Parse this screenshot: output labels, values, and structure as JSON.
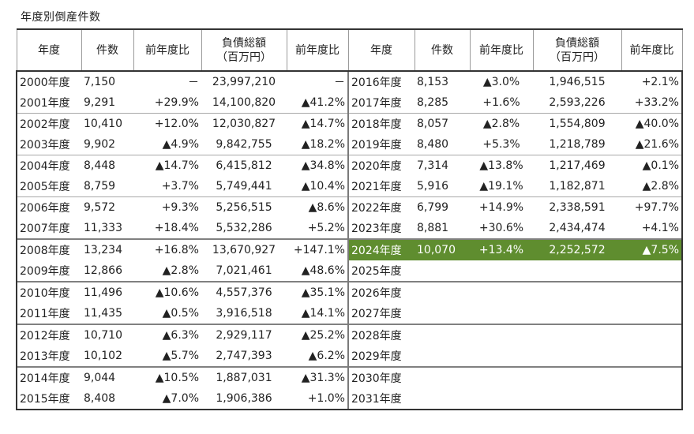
{
  "title": "年度別倒産件数",
  "highlight_color": "#5f8d2f",
  "headers": {
    "year": "年度",
    "count": "件数",
    "yoy": "前年度比",
    "debt": "負債総額",
    "debt_unit": "（百万円）"
  },
  "left": [
    {
      "year": "2000年度",
      "count": "7,150",
      "count_yoy": "－",
      "debt": "23,997,210",
      "debt_yoy": "－"
    },
    {
      "year": "2001年度",
      "count": "9,291",
      "count_yoy": "+29.9%",
      "debt": "14,100,820",
      "debt_yoy": "▲41.2%"
    },
    {
      "year": "2002年度",
      "count": "10,410",
      "count_yoy": "+12.0%",
      "debt": "12,030,827",
      "debt_yoy": "▲14.7%"
    },
    {
      "year": "2003年度",
      "count": "9,902",
      "count_yoy": "▲4.9%",
      "debt": "9,842,755",
      "debt_yoy": "▲18.2%"
    },
    {
      "year": "2004年度",
      "count": "8,448",
      "count_yoy": "▲14.7%",
      "debt": "6,415,812",
      "debt_yoy": "▲34.8%"
    },
    {
      "year": "2005年度",
      "count": "8,759",
      "count_yoy": "+3.7%",
      "debt": "5,749,441",
      "debt_yoy": "▲10.4%"
    },
    {
      "year": "2006年度",
      "count": "9,572",
      "count_yoy": "+9.3%",
      "debt": "5,256,515",
      "debt_yoy": "▲8.6%"
    },
    {
      "year": "2007年度",
      "count": "11,333",
      "count_yoy": "+18.4%",
      "debt": "5,532,286",
      "debt_yoy": "+5.2%"
    },
    {
      "year": "2008年度",
      "count": "13,234",
      "count_yoy": "+16.8%",
      "debt": "13,670,927",
      "debt_yoy": "+147.1%"
    },
    {
      "year": "2009年度",
      "count": "12,866",
      "count_yoy": "▲2.8%",
      "debt": "7,021,461",
      "debt_yoy": "▲48.6%"
    },
    {
      "year": "2010年度",
      "count": "11,496",
      "count_yoy": "▲10.6%",
      "debt": "4,557,376",
      "debt_yoy": "▲35.1%"
    },
    {
      "year": "2011年度",
      "count": "11,435",
      "count_yoy": "▲0.5%",
      "debt": "3,916,518",
      "debt_yoy": "▲14.1%"
    },
    {
      "year": "2012年度",
      "count": "10,710",
      "count_yoy": "▲6.3%",
      "debt": "2,929,117",
      "debt_yoy": "▲25.2%"
    },
    {
      "year": "2013年度",
      "count": "10,102",
      "count_yoy": "▲5.7%",
      "debt": "2,747,393",
      "debt_yoy": "▲6.2%"
    },
    {
      "year": "2014年度",
      "count": "9,044",
      "count_yoy": "▲10.5%",
      "debt": "1,887,031",
      "debt_yoy": "▲31.3%"
    },
    {
      "year": "2015年度",
      "count": "8,408",
      "count_yoy": "▲7.0%",
      "debt": "1,906,386",
      "debt_yoy": "+1.0%"
    }
  ],
  "right": [
    {
      "year": "2016年度",
      "count": "8,153",
      "count_yoy": "▲3.0%",
      "debt": "1,946,515",
      "debt_yoy": "+2.1%"
    },
    {
      "year": "2017年度",
      "count": "8,285",
      "count_yoy": "+1.6%",
      "debt": "2,593,226",
      "debt_yoy": "+33.2%"
    },
    {
      "year": "2018年度",
      "count": "8,057",
      "count_yoy": "▲2.8%",
      "debt": "1,554,809",
      "debt_yoy": "▲40.0%"
    },
    {
      "year": "2019年度",
      "count": "8,480",
      "count_yoy": "+5.3%",
      "debt": "1,218,789",
      "debt_yoy": "▲21.6%"
    },
    {
      "year": "2020年度",
      "count": "7,314",
      "count_yoy": "▲13.8%",
      "debt": "1,217,469",
      "debt_yoy": "▲0.1%"
    },
    {
      "year": "2021年度",
      "count": "5,916",
      "count_yoy": "▲19.1%",
      "debt": "1,182,871",
      "debt_yoy": "▲2.8%"
    },
    {
      "year": "2022年度",
      "count": "6,799",
      "count_yoy": "+14.9%",
      "debt": "2,338,591",
      "debt_yoy": "+97.7%"
    },
    {
      "year": "2023年度",
      "count": "8,881",
      "count_yoy": "+30.6%",
      "debt": "2,434,474",
      "debt_yoy": "+4.1%"
    },
    {
      "year": "2024年度",
      "count": "10,070",
      "count_yoy": "+13.4%",
      "debt": "2,252,572",
      "debt_yoy": "▲7.5%",
      "highlight": true
    },
    {
      "year": "2025年度",
      "count": "",
      "count_yoy": "",
      "debt": "",
      "debt_yoy": ""
    },
    {
      "year": "2026年度",
      "count": "",
      "count_yoy": "",
      "debt": "",
      "debt_yoy": ""
    },
    {
      "year": "2027年度",
      "count": "",
      "count_yoy": "",
      "debt": "",
      "debt_yoy": ""
    },
    {
      "year": "2028年度",
      "count": "",
      "count_yoy": "",
      "debt": "",
      "debt_yoy": ""
    },
    {
      "year": "2029年度",
      "count": "",
      "count_yoy": "",
      "debt": "",
      "debt_yoy": ""
    },
    {
      "year": "2030年度",
      "count": "",
      "count_yoy": "",
      "debt": "",
      "debt_yoy": ""
    },
    {
      "year": "2031年度",
      "count": "",
      "count_yoy": "",
      "debt": "",
      "debt_yoy": ""
    }
  ]
}
